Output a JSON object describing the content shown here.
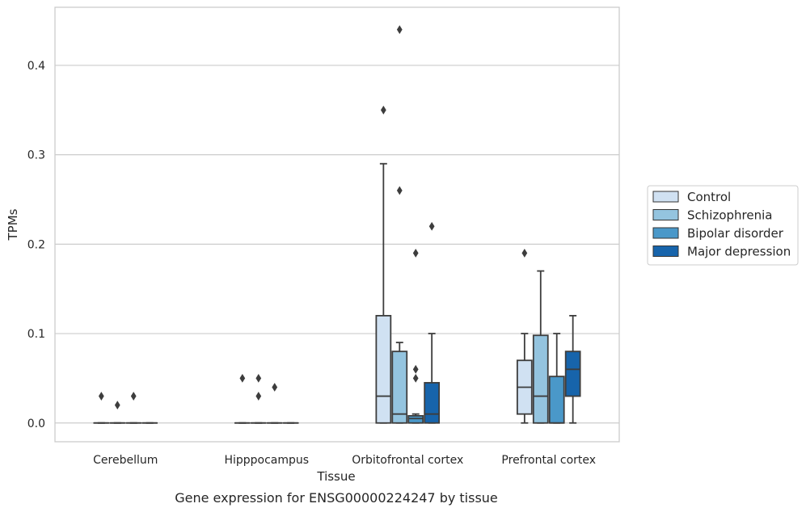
{
  "chart_data": {
    "type": "box",
    "title": "",
    "caption": "Gene expression for ENSG00000224247 by tissue",
    "xlabel": "Tissue",
    "ylabel": "TPMs",
    "ylim": [
      -0.021,
      0.465
    ],
    "yticks": [
      "0.0",
      "0.1",
      "0.2",
      "0.3",
      "0.4"
    ],
    "ytick_values": [
      0.0,
      0.1,
      0.2,
      0.3,
      0.4
    ],
    "grid": "horizontal",
    "legend_placement": "right",
    "categories": [
      "Cerebellum",
      "Hipppocampus",
      "Orbitofrontal cortex",
      "Prefrontal cortex"
    ],
    "series": [
      {
        "name": "Control",
        "color": "#d0e1f2",
        "boxes": [
          {
            "min": 0,
            "q1": 0,
            "median": 0,
            "q3": 0,
            "max": 0,
            "outliers": [
              0.03
            ]
          },
          {
            "min": 0,
            "q1": 0,
            "median": 0,
            "q3": 0,
            "max": 0,
            "outliers": [
              0.05
            ]
          },
          {
            "min": 0,
            "q1": 0,
            "median": 0.03,
            "q3": 0.12,
            "max": 0.29,
            "outliers": [
              0.35
            ]
          },
          {
            "min": 0,
            "q1": 0.01,
            "median": 0.04,
            "q3": 0.07,
            "max": 0.1,
            "outliers": [
              0.19
            ]
          }
        ]
      },
      {
        "name": "Schizophrenia",
        "color": "#94c4df",
        "boxes": [
          {
            "min": 0,
            "q1": 0,
            "median": 0,
            "q3": 0,
            "max": 0,
            "outliers": [
              0.02
            ]
          },
          {
            "min": 0,
            "q1": 0,
            "median": 0,
            "q3": 0,
            "max": 0,
            "outliers": [
              0.05,
              0.03
            ]
          },
          {
            "min": 0,
            "q1": 0,
            "median": 0.01,
            "q3": 0.08,
            "max": 0.09,
            "outliers": [
              0.44,
              0.26
            ]
          },
          {
            "min": 0,
            "q1": 0,
            "median": 0.03,
            "q3": 0.098,
            "max": 0.17,
            "outliers": []
          }
        ]
      },
      {
        "name": "Bipolar disorder",
        "color": "#4a98c9",
        "boxes": [
          {
            "min": 0,
            "q1": 0,
            "median": 0,
            "q3": 0,
            "max": 0,
            "outliers": [
              0.03
            ]
          },
          {
            "min": 0,
            "q1": 0,
            "median": 0,
            "q3": 0,
            "max": 0,
            "outliers": [
              0.04
            ]
          },
          {
            "min": 0,
            "q1": 0,
            "median": 0.005,
            "q3": 0.008,
            "max": 0.01,
            "outliers": [
              0.19,
              0.06,
              0.05
            ]
          },
          {
            "min": 0,
            "q1": 0,
            "median": 0,
            "q3": 0.052,
            "max": 0.1,
            "outliers": []
          }
        ]
      },
      {
        "name": "Major depression",
        "color": "#1764ab",
        "boxes": [
          {
            "min": 0,
            "q1": 0,
            "median": 0,
            "q3": 0,
            "max": 0,
            "outliers": []
          },
          {
            "min": 0,
            "q1": 0,
            "median": 0,
            "q3": 0,
            "max": 0,
            "outliers": []
          },
          {
            "min": 0,
            "q1": 0,
            "median": 0.01,
            "q3": 0.045,
            "max": 0.1,
            "outliers": [
              0.22
            ]
          },
          {
            "min": 0,
            "q1": 0.03,
            "median": 0.06,
            "q3": 0.08,
            "max": 0.12,
            "outliers": []
          }
        ]
      }
    ]
  }
}
